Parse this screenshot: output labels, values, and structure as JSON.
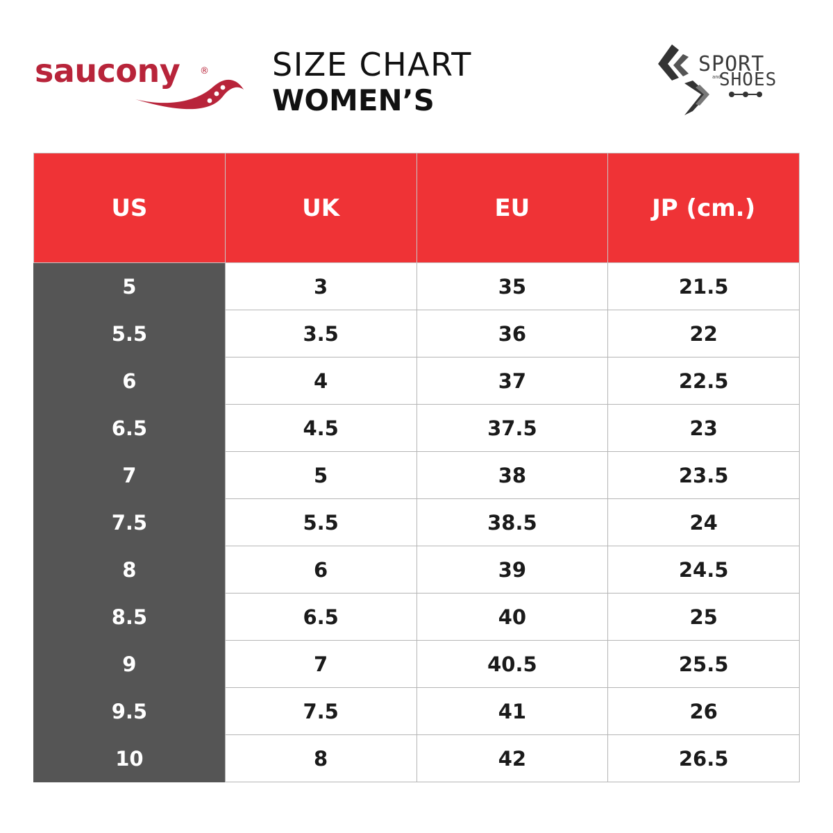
{
  "brand": {
    "name": "saucony",
    "registered_mark": "®",
    "color": "#b8243a"
  },
  "title": {
    "line1": "SIZE CHART",
    "line2": "WOMEN’S"
  },
  "partner_logo": {
    "line1": "SPORT",
    "connector": "and",
    "line2": "SHOES",
    "color": "#3a3a3a"
  },
  "table": {
    "header_color": "#ef3336",
    "us_column_color": "#555555",
    "headers": [
      "US",
      "UK",
      "EU",
      "JP (cm.)"
    ],
    "rows": [
      [
        "5",
        "3",
        "35",
        "21.5"
      ],
      [
        "5.5",
        "3.5",
        "36",
        "22"
      ],
      [
        "6",
        "4",
        "37",
        "22.5"
      ],
      [
        "6.5",
        "4.5",
        "37.5",
        "23"
      ],
      [
        "7",
        "5",
        "38",
        "23.5"
      ],
      [
        "7.5",
        "5.5",
        "38.5",
        "24"
      ],
      [
        "8",
        "6",
        "39",
        "24.5"
      ],
      [
        "8.5",
        "6.5",
        "40",
        "25"
      ],
      [
        "9",
        "7",
        "40.5",
        "25.5"
      ],
      [
        "9.5",
        "7.5",
        "41",
        "26"
      ],
      [
        "10",
        "8",
        "42",
        "26.5"
      ]
    ]
  }
}
